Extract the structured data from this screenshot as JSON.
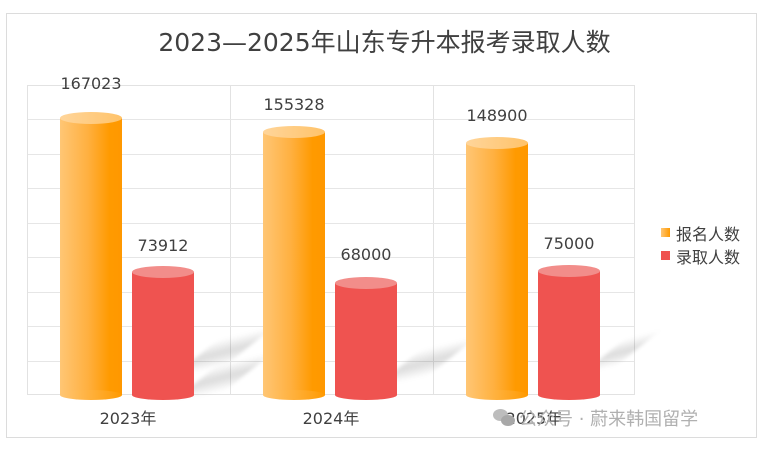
{
  "chart_data": {
    "type": "bar",
    "title": "2023—2025年山东专升本报考录取人数",
    "categories": [
      "2023年",
      "2024年",
      "2025年"
    ],
    "series": [
      {
        "name": "报名人数",
        "values": [
          167023,
          155328,
          148900
        ],
        "color": "#FF9A00"
      },
      {
        "name": "录取人数",
        "values": [
          73912,
          68000,
          75000
        ],
        "color": "#EF5350"
      }
    ],
    "xlabel": "",
    "ylabel": "",
    "ylim": [
      0,
      180000
    ],
    "grid": true,
    "legend_position": "right",
    "style": "3d-cylinder"
  },
  "title": "2023—2025年山东专升本报考录取人数",
  "legend": [
    {
      "label": "报名人数",
      "color": "#FF9A00"
    },
    {
      "label": "录取人数",
      "color": "#EF5350"
    }
  ],
  "labels": {
    "reg": [
      "167023",
      "155328",
      "148900"
    ],
    "adm": [
      "73912",
      "68000",
      "75000"
    ],
    "x": [
      "2023年",
      "2024年",
      "2025年"
    ]
  },
  "watermark": "公众号 · 蔚来韩国留学"
}
